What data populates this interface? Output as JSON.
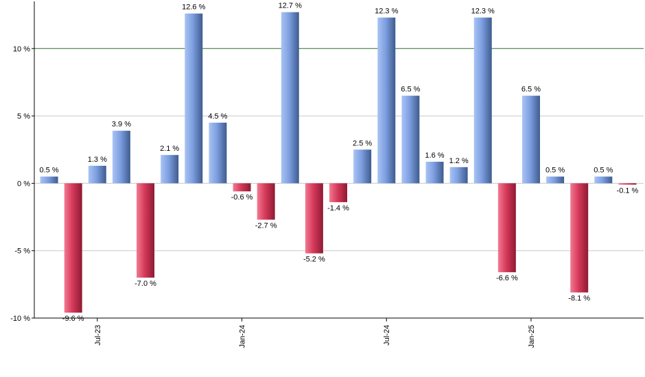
{
  "chart_data": {
    "type": "bar",
    "unit_suffix": " %",
    "ylim": [
      -10,
      13.5
    ],
    "yticks": [
      -10,
      -5,
      0,
      5,
      10
    ],
    "ytick_labels": [
      "-10 %",
      "-5 %",
      "0 %",
      "5 %",
      "10 %"
    ],
    "reference_line": 10,
    "grid": true,
    "values": [
      0.5,
      -9.6,
      1.3,
      3.9,
      -7.0,
      2.1,
      12.6,
      4.5,
      -0.6,
      -2.7,
      12.7,
      -5.2,
      -1.4,
      2.5,
      12.3,
      6.5,
      1.6,
      1.2,
      12.3,
      -6.6,
      6.5,
      0.5,
      -8.1,
      0.5,
      -0.1
    ],
    "bar_labels": [
      "0.5 %",
      "-9.6 %",
      "1.3 %",
      "3.9 %",
      "-7.0 %",
      "2.1 %",
      "12.6 %",
      "4.5 %",
      "-0.6 %",
      "-2.7 %",
      "12.7 %",
      "-5.2 %",
      "-1.4 %",
      "2.5 %",
      "12.3 %",
      "6.5 %",
      "1.6 %",
      "1.2 %",
      "12.3 %",
      "-6.6 %",
      "6.5 %",
      "0.5 %",
      "-8.1 %",
      "0.5 %",
      "-0.1 %"
    ],
    "x_ticks": [
      {
        "index": 2.5,
        "label": "Jul-23"
      },
      {
        "index": 8.5,
        "label": "Jan-24"
      },
      {
        "index": 14.5,
        "label": "Jul-24"
      },
      {
        "index": 20.5,
        "label": "Jan-25"
      }
    ],
    "colors": {
      "positive_light": "#a9c4f4",
      "positive_dark": "#3e5c8e",
      "negative_light": "#f27a92",
      "negative_dark": "#8e1a33",
      "reference_line": "#2f6b2f",
      "grid": "#c8c8c8",
      "axis": "#000000"
    }
  }
}
